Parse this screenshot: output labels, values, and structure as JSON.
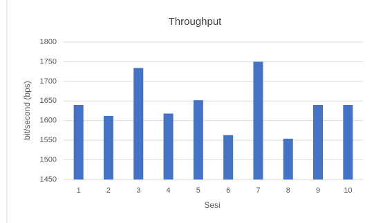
{
  "chart_data": {
    "type": "bar",
    "title": "Throughput",
    "x_label": "Sesi",
    "y_label": "bit/second (bps)",
    "categories": [
      "1",
      "2",
      "3",
      "4",
      "5",
      "6",
      "7",
      "8",
      "9",
      "10"
    ],
    "values": [
      1640,
      1612,
      1734,
      1618,
      1652,
      1563,
      1750,
      1554,
      1640,
      1640
    ],
    "color": "#4472c4",
    "ylim": [
      1450,
      1800
    ],
    "yticks": [
      1450,
      1500,
      1550,
      1600,
      1650,
      1700,
      1750,
      1800
    ],
    "grid": true
  }
}
